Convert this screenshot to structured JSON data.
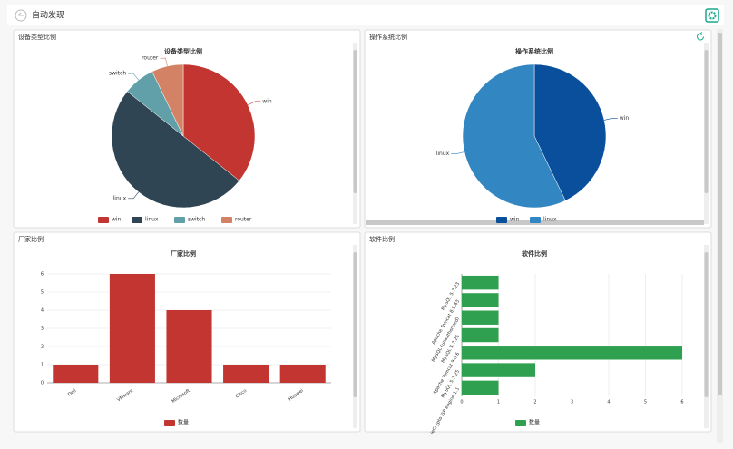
{
  "header": {
    "title": "自动发现"
  },
  "panels": [
    {
      "title": "设备类型比例"
    },
    {
      "title": "操作系统比例"
    },
    {
      "title": "厂家比例"
    },
    {
      "title": "软件比例"
    }
  ],
  "chart_data": [
    {
      "type": "pie",
      "title": "设备类型比例",
      "categories": [
        "win",
        "linux",
        "switch",
        "router"
      ],
      "values": [
        5,
        7,
        1,
        1
      ],
      "colors": [
        "#c23531",
        "#2f4554",
        "#61a0a8",
        "#d48265"
      ]
    },
    {
      "type": "pie",
      "title": "操作系统比例",
      "categories": [
        "win",
        "linux"
      ],
      "values": [
        3,
        4
      ],
      "colors": [
        "#0a4f9c",
        "#3286c2"
      ]
    },
    {
      "type": "bar",
      "title": "厂家比例",
      "categories": [
        "Dell",
        "VMware",
        "Microsoft",
        "Cisco",
        "Huawei"
      ],
      "series": [
        {
          "name": "数量",
          "color": "#c23531",
          "values": [
            1,
            6,
            4,
            1,
            1
          ]
        }
      ],
      "ylim": [
        0,
        6
      ],
      "yticks": [
        0,
        1,
        2,
        3,
        4,
        5,
        6
      ]
    },
    {
      "type": "barh",
      "title": "软件比例",
      "categories": [
        "MySQL 5.7.23",
        "Apache Tomcat 8.5.43",
        "MySQL (unauthorized)",
        "MySQL 5.7.26",
        "Apache Tomcat 9.0.6",
        "MySQL 5.7.25",
        "ieCrypto ISP engine 1.1"
      ],
      "series": [
        {
          "name": "数量",
          "color": "#2ea04f",
          "values": [
            1,
            1,
            1,
            1,
            6,
            2,
            1
          ]
        }
      ],
      "xlim": [
        0,
        6
      ],
      "xticks": [
        0,
        1,
        2,
        3,
        4,
        5,
        6
      ],
      "grid": true
    }
  ]
}
